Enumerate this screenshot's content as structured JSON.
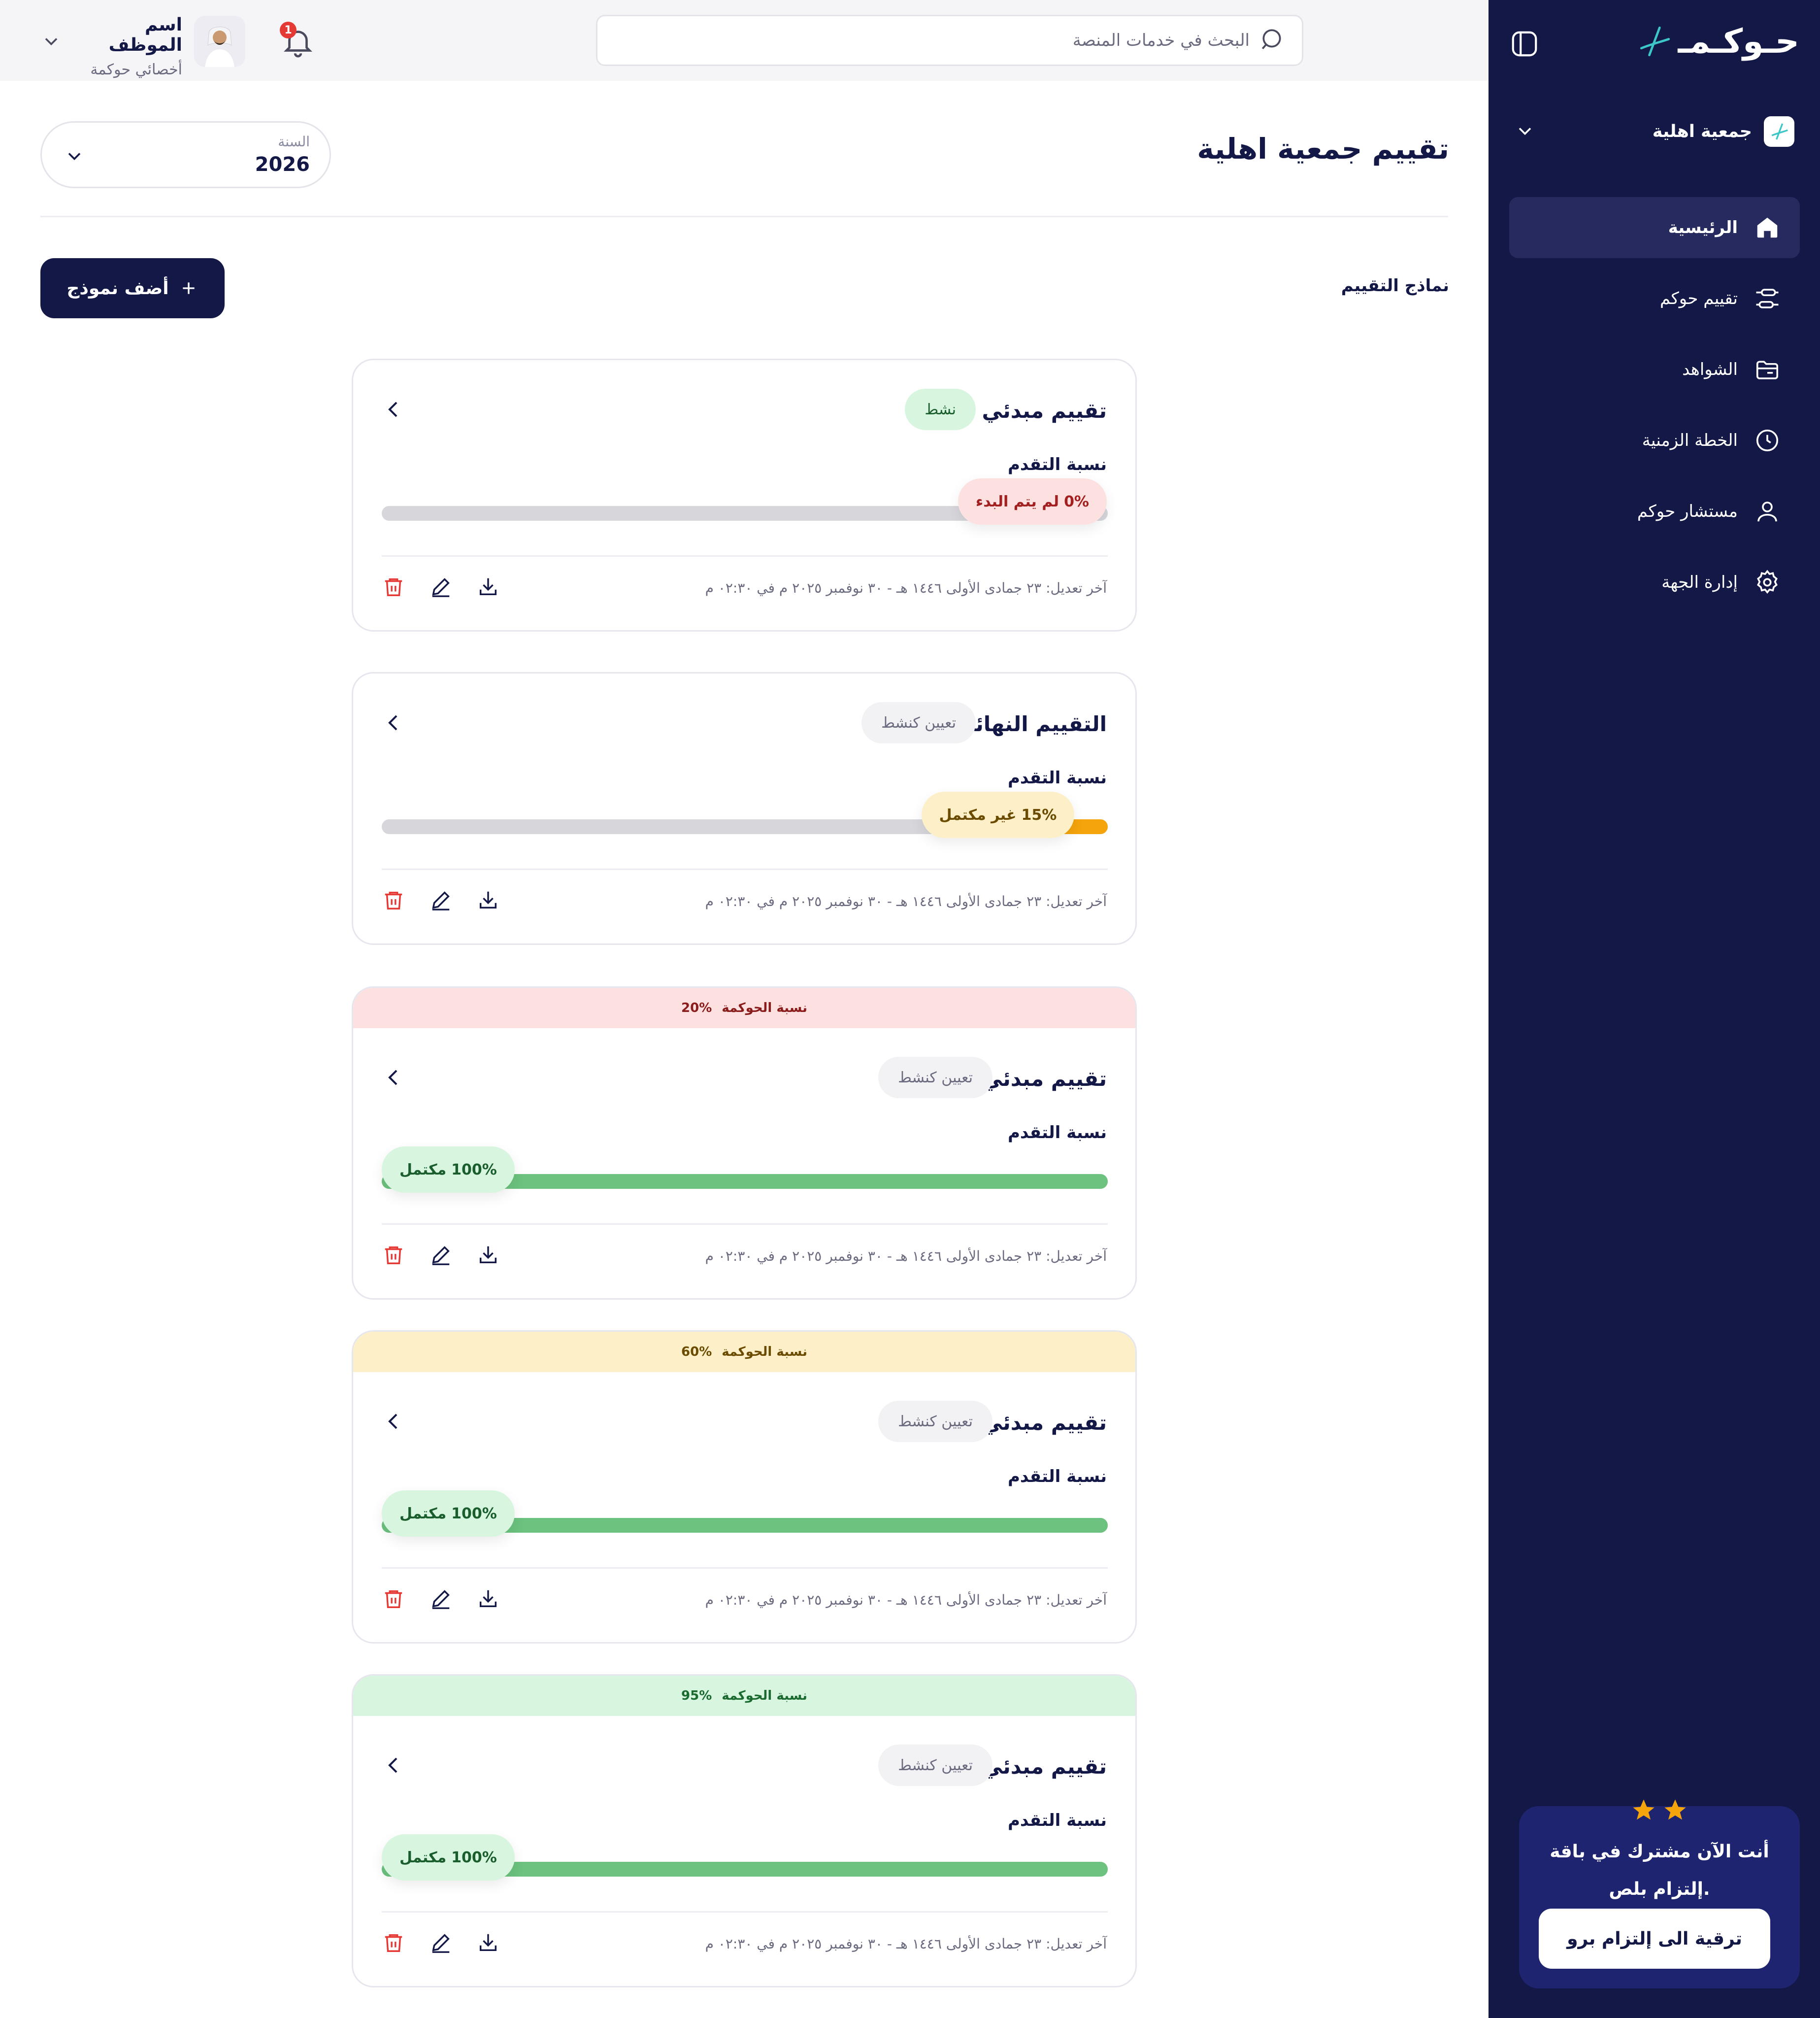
{
  "sidebar": {
    "logo_text": "حـوكـمـ",
    "org_name": "جمعية اهلية",
    "nav": [
      {
        "label": "الرئيسية",
        "icon": "home-icon",
        "active": true
      },
      {
        "label": "تقييم حوكم",
        "icon": "sliders-icon",
        "active": false
      },
      {
        "label": "الشواهد",
        "icon": "folder-icon",
        "active": false
      },
      {
        "label": "الخطة الزمنية",
        "icon": "clock-icon",
        "active": false
      },
      {
        "label": "مستشار حوكم",
        "icon": "user-icon",
        "active": false
      },
      {
        "label": "إدارة الجهة",
        "icon": "gear-icon",
        "active": false
      }
    ],
    "promo": {
      "line1": "أنت الآن مشترك في باقة",
      "line2": "إلتزام بلص.",
      "button": "ترقية الى إلتزام برو"
    }
  },
  "topbar": {
    "search_placeholder": "البحث في خدمات المنصة",
    "notifications_count": "1",
    "user_name": "اسم الموظف",
    "user_role": "أخصائي حوكمة"
  },
  "header": {
    "title": "تقييم جمعية اهلية",
    "year_label": "السنة",
    "year_value": "2026",
    "section_label": "نماذج التقييم",
    "add_button": "أضف نموذج"
  },
  "cards": [
    {
      "title": "تقييم مبدئي 2",
      "status": "نشط",
      "status_type": "active",
      "progress_label": "نسبة التقدم",
      "progress": 0,
      "progress_pct": "0%",
      "progress_state": "لم يتم البدء",
      "badge_type": "red",
      "meta": "آخر تعديل: ٢٣ جمادى الأولى ١٤٤٦ هـ - ٣٠ نوفمبر ٢٠٢٥ م في ٠٢:٣٠ م"
    },
    {
      "title": "التقييم النهائي",
      "status": "تعيين كنشط",
      "status_type": "set",
      "progress_label": "نسبة التقدم",
      "progress": 15,
      "progress_pct": "15%",
      "progress_state": "غير مكتمل",
      "badge_type": "yellow",
      "meta": "آخر تعديل: ٢٣ جمادى الأولى ١٤٤٦ هـ - ٣٠ نوفمبر ٢٠٢٥ م في ٠٢:٣٠ م"
    },
    {
      "banner_label": "نسبة الحوكمة",
      "banner_value": "20%",
      "banner_type": "red",
      "title": "تقييم مبدئي",
      "status": "تعيين كنشط",
      "status_type": "set",
      "progress_label": "نسبة التقدم",
      "progress": 100,
      "progress_pct": "100%",
      "progress_state": "مكتمل",
      "badge_type": "green",
      "meta": "آخر تعديل: ٢٣ جمادى الأولى ١٤٤٦ هـ - ٣٠ نوفمبر ٢٠٢٥ م في ٠٢:٣٠ م"
    },
    {
      "banner_label": "نسبة الحوكمة",
      "banner_value": "60%",
      "banner_type": "yellow",
      "title": "تقييم مبدئي",
      "status": "تعيين كنشط",
      "status_type": "set",
      "progress_label": "نسبة التقدم",
      "progress": 100,
      "progress_pct": "100%",
      "progress_state": "مكتمل",
      "badge_type": "green",
      "meta": "آخر تعديل: ٢٣ جمادى الأولى ١٤٤٦ هـ - ٣٠ نوفمبر ٢٠٢٥ م في ٠٢:٣٠ م"
    },
    {
      "banner_label": "نسبة الحوكمة",
      "banner_value": "95%",
      "banner_type": "green",
      "title": "تقييم مبدئي",
      "status": "تعيين كنشط",
      "status_type": "set",
      "progress_label": "نسبة التقدم",
      "progress": 100,
      "progress_pct": "100%",
      "progress_state": "مكتمل",
      "badge_type": "green",
      "meta": "آخر تعديل: ٢٣ جمادى الأولى ١٤٤٦ هـ - ٣٠ نوفمبر ٢٠٢٥ م في ٠٢:٣٠ م"
    }
  ],
  "colors": {
    "sidebar_bg": "#141846",
    "primary": "#141846",
    "progress_orange": "#f5a40c",
    "progress_green": "#6cc27e",
    "track": "#d6d6db",
    "danger": "#e53935"
  }
}
